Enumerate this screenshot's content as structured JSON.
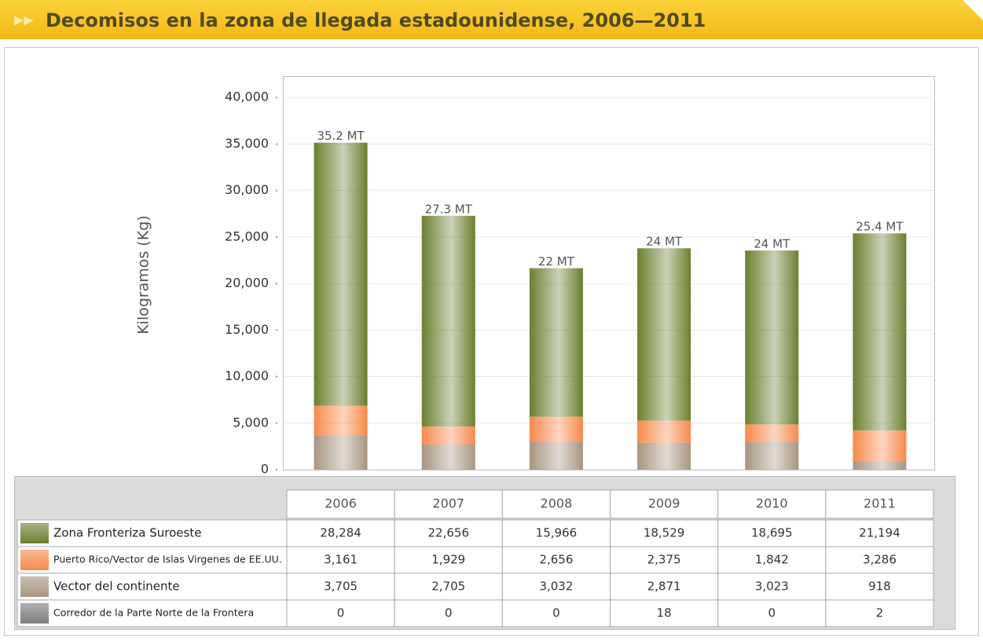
{
  "chart_data": {
    "type": "stacked_bar",
    "title": "Decomisos en la zona de llegada estadounidense, 2006—2011",
    "y_label": "Kilogramos (Kg)",
    "categories": [
      "2006",
      "2007",
      "2008",
      "2009",
      "2010",
      "2011"
    ],
    "total_labels": [
      "35.2 MT",
      "27.3 MT",
      "22 MT",
      "24 MT",
      "24 MT",
      "25.4 MT"
    ],
    "series": [
      {
        "name": "Zona Fronteriza Suroeste",
        "color": "#6b7f2e",
        "values": [
          28284,
          22656,
          15966,
          18529,
          18695,
          21194
        ],
        "value_labels": [
          "28,284",
          "22,656",
          "15,966",
          "18,529",
          "18,695",
          "21,194"
        ]
      },
      {
        "name": "Puerto Rico/Vector de Islas Virgenes de EE.UU.",
        "color": "#f7894a",
        "values": [
          3161,
          1929,
          2656,
          2375,
          1842,
          3286
        ],
        "value_labels": [
          "3,161",
          "1,929",
          "2,656",
          "2,375",
          "1,842",
          "3,286"
        ]
      },
      {
        "name": "Vector del continente",
        "color": "#a89580",
        "values": [
          3705,
          2705,
          3032,
          2871,
          3023,
          918
        ],
        "value_labels": [
          "3,705",
          "2,705",
          "3,032",
          "2,871",
          "3,023",
          "918"
        ]
      },
      {
        "name": "Corredor de la Parte Norte de la Frontera",
        "color": "#7d7d80",
        "values": [
          0,
          0,
          0,
          18,
          0,
          2
        ],
        "value_labels": [
          "0",
          "0",
          "0",
          "18",
          "0",
          "2"
        ]
      }
    ],
    "ylim": [
      0,
      42300
    ],
    "yticks": [
      0,
      {
        "value": 5000,
        "label": "5,000"
      },
      {
        "value": 10000,
        "label": "10,000"
      },
      {
        "value": 15000,
        "label": "15,000"
      },
      {
        "value": 20000,
        "label": "20,000"
      },
      {
        "value": 25000,
        "label": "25,000"
      },
      {
        "value": 30000,
        "label": "30,000"
      },
      {
        "value": 35000,
        "label": "35,000"
      },
      {
        "value": 40000,
        "label": "40,000"
      }
    ],
    "grid": true
  }
}
